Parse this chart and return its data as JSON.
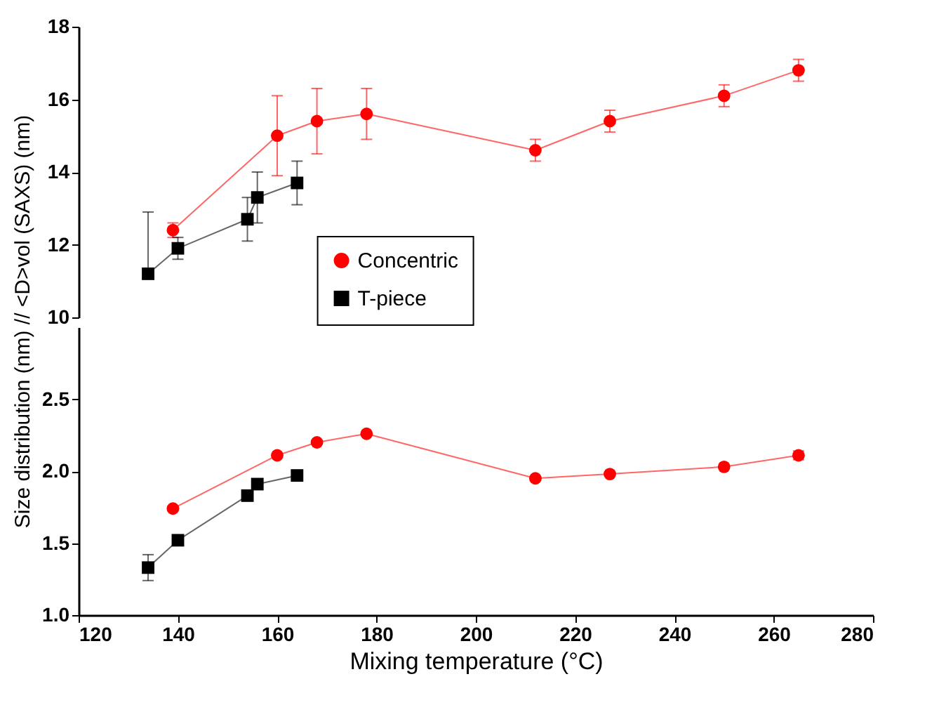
{
  "chart_data": [
    {
      "type": "line",
      "ylabel": "Size distribution (nm) // <D>vol (SAXS) (nm)",
      "xlim": [
        120,
        280
      ],
      "xticks": [
        120,
        140,
        160,
        180,
        200,
        220,
        240,
        260,
        280
      ],
      "ylim": [
        10,
        18
      ],
      "yticks": [
        10,
        12,
        14,
        16,
        18
      ],
      "tick_labels": "y",
      "legend": "bottom",
      "line_style": "solid",
      "series": [
        {
          "name": "Concentric",
          "color": "#ff0000",
          "marker": "circle",
          "x": [
            139,
            160,
            168,
            178,
            212,
            227,
            250,
            265
          ],
          "values": [
            12.4,
            15.0,
            15.4,
            15.6,
            14.6,
            15.4,
            16.1,
            16.8
          ],
          "errors": [
            0.2,
            [
              13.9,
              16.1
            ],
            [
              14.5,
              16.3
            ],
            [
              14.9,
              16.3
            ],
            0.3,
            0.3,
            0.3,
            0.3
          ]
        },
        {
          "name": "T-piece",
          "color": "#000000",
          "marker": "square",
          "x": [
            134,
            140,
            154,
            156,
            164
          ],
          "values": [
            11.2,
            11.9,
            12.7,
            13.3,
            13.7
          ],
          "errors": [
            [
              11.2,
              12.9
            ],
            0.3,
            [
              12.1,
              13.3
            ],
            [
              12.6,
              14.0
            ],
            [
              13.1,
              14.3
            ]
          ]
        }
      ]
    },
    {
      "type": "line",
      "xlabel": "Mixing temperature (°C)",
      "xlim": [
        120,
        280
      ],
      "xticks": [
        120,
        140,
        160,
        180,
        200,
        220,
        240,
        260,
        280
      ],
      "ylim": [
        1.0,
        3.0
      ],
      "yticks": [
        {
          "value": 1.0,
          "label": "1.0"
        },
        1.5,
        {
          "value": 2.0,
          "label": "2.0"
        },
        2.5
      ],
      "line_style": "solid",
      "series": [
        {
          "name": "Concentric",
          "color": "#ff0000",
          "marker": "circle",
          "x": [
            139,
            160,
            168,
            178,
            212,
            227,
            250,
            265
          ],
          "values": [
            1.74,
            2.11,
            2.2,
            2.26,
            1.95,
            1.98,
            2.03,
            2.11
          ],
          "errors": [
            null,
            null,
            null,
            null,
            null,
            null,
            null,
            0.03
          ]
        },
        {
          "name": "T-piece",
          "color": "#000000",
          "marker": "square",
          "x": [
            134,
            140,
            154,
            156,
            164
          ],
          "values": [
            1.33,
            1.52,
            1.83,
            1.91,
            1.97
          ],
          "errors": [
            [
              1.24,
              1.42
            ],
            null,
            null,
            null,
            null
          ]
        }
      ]
    }
  ]
}
